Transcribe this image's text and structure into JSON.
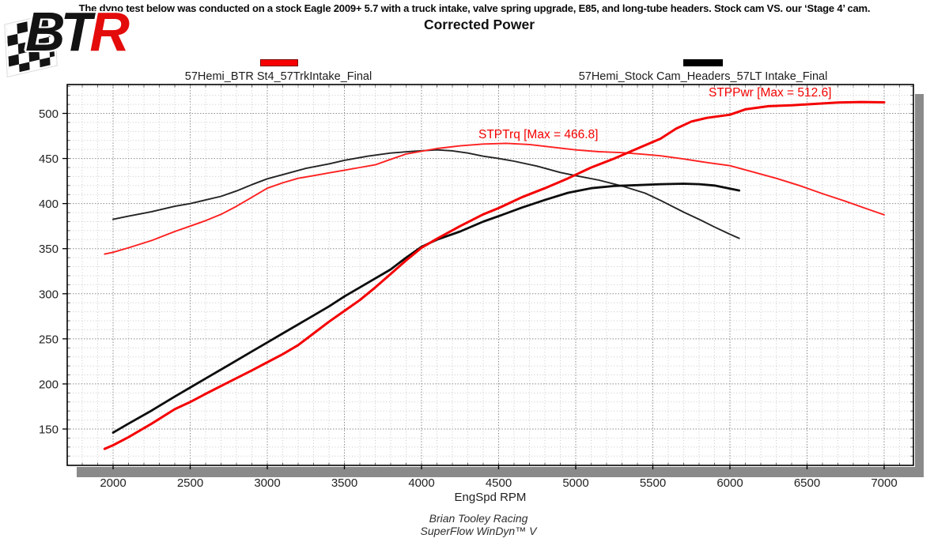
{
  "header": {
    "strip_text": "The dyno test below was conducted on a stock Eagle 2009+ 5.7 with a truck intake, valve spring upgrade, E85, and long-tube headers. Stock cam VS. our ‘Stage 4’ cam."
  },
  "logo": {
    "bt": "BT",
    "r": "R"
  },
  "footer": {
    "line1": "Brian Tooley Racing",
    "line2": "SuperFlow WinDyn™ V"
  },
  "chart_data": {
    "type": "line",
    "title": "Corrected Power",
    "xlabel": "EngSpd RPM",
    "ylabel": "",
    "grid": true,
    "legend_position": "top",
    "xlim": [
      1700,
      7190
    ],
    "ylim": [
      110,
      532
    ],
    "x_ticks": [
      2000,
      2500,
      3000,
      3500,
      4000,
      4500,
      5000,
      5500,
      6000,
      6500,
      7000
    ],
    "y_ticks": [
      150,
      200,
      250,
      300,
      350,
      400,
      450,
      500
    ],
    "x_minor_step": 100,
    "y_minor_step": 10,
    "colors": {
      "accent_red": "#f40000",
      "accent_black": "#111111",
      "shadow_gray": "#8a8a8a"
    },
    "legend": [
      {
        "label": "57Hemi_BTR St4_57TrkIntake_Final",
        "color": "#f70000"
      },
      {
        "label": "57Hemi_Stock Cam_Headers_57LT Intake_Final",
        "color": "#000000"
      }
    ],
    "annotations": [
      {
        "text": "STPTrq [Max = 466.8]",
        "color": "#f40000"
      },
      {
        "text": "STPPwr [Max = 512.6]",
        "color": "#f40000"
      }
    ],
    "series": [
      {
        "id": "stptrq_stock",
        "measure": "STPTrq",
        "run": "57Hemi_Stock Cam_Headers_57LT Intake_Final",
        "color": "#242424",
        "width": 1.9,
        "points": [
          [
            2000,
            382.5
          ],
          [
            2100,
            386
          ],
          [
            2250,
            391
          ],
          [
            2400,
            397
          ],
          [
            2500,
            400
          ],
          [
            2600,
            404
          ],
          [
            2700,
            408
          ],
          [
            2800,
            414
          ],
          [
            2900,
            421
          ],
          [
            3000,
            427.5
          ],
          [
            3100,
            432
          ],
          [
            3250,
            439
          ],
          [
            3400,
            444
          ],
          [
            3500,
            448
          ],
          [
            3650,
            452.5
          ],
          [
            3800,
            456
          ],
          [
            3950,
            458
          ],
          [
            4100,
            459.5
          ],
          [
            4200,
            458.5
          ],
          [
            4300,
            456
          ],
          [
            4400,
            452.5
          ],
          [
            4500,
            450
          ],
          [
            4600,
            447
          ],
          [
            4750,
            441.5
          ],
          [
            4900,
            434.5
          ],
          [
            5000,
            431
          ],
          [
            5150,
            426
          ],
          [
            5300,
            419.5
          ],
          [
            5450,
            411.5
          ],
          [
            5550,
            403.5
          ],
          [
            5700,
            390.5
          ],
          [
            5800,
            382.5
          ],
          [
            5900,
            374
          ],
          [
            6000,
            366
          ],
          [
            6060,
            361.5
          ]
        ]
      },
      {
        "id": "stptrq_btr",
        "measure": "STPTrq",
        "max": 466.8,
        "run": "57Hemi_BTR St4_57TrkIntake_Final",
        "color": "#ff2020",
        "width": 1.9,
        "points": [
          [
            1945,
            344
          ],
          [
            2000,
            346
          ],
          [
            2100,
            351
          ],
          [
            2250,
            359
          ],
          [
            2400,
            369
          ],
          [
            2500,
            375
          ],
          [
            2600,
            381
          ],
          [
            2700,
            388
          ],
          [
            2800,
            397
          ],
          [
            2900,
            407
          ],
          [
            3000,
            417
          ],
          [
            3100,
            423
          ],
          [
            3200,
            428
          ],
          [
            3300,
            431
          ],
          [
            3400,
            434
          ],
          [
            3500,
            437
          ],
          [
            3600,
            440
          ],
          [
            3700,
            443
          ],
          [
            3800,
            449
          ],
          [
            3900,
            455
          ],
          [
            4000,
            458
          ],
          [
            4100,
            461
          ],
          [
            4250,
            464
          ],
          [
            4400,
            466
          ],
          [
            4550,
            466.8
          ],
          [
            4700,
            465.5
          ],
          [
            4850,
            462.5
          ],
          [
            5000,
            459.5
          ],
          [
            5150,
            457.5
          ],
          [
            5300,
            456.5
          ],
          [
            5450,
            454.5
          ],
          [
            5550,
            453
          ],
          [
            5700,
            449.5
          ],
          [
            5850,
            445.5
          ],
          [
            6000,
            442
          ],
          [
            6150,
            435
          ],
          [
            6300,
            428
          ],
          [
            6450,
            420
          ],
          [
            6600,
            411
          ],
          [
            6750,
            402.5
          ],
          [
            6900,
            393.5
          ],
          [
            7000,
            387.5
          ]
        ]
      },
      {
        "id": "stppwr_stock",
        "measure": "STPPwr",
        "run": "57Hemi_Stock Cam_Headers_57LT Intake_Final",
        "color": "#0d0d0d",
        "width": 2.8,
        "points": [
          [
            2000,
            146
          ],
          [
            2100,
            156
          ],
          [
            2250,
            170.5
          ],
          [
            2400,
            186
          ],
          [
            2500,
            196
          ],
          [
            2600,
            206
          ],
          [
            2750,
            221
          ],
          [
            2900,
            236
          ],
          [
            3000,
            246
          ],
          [
            3100,
            256
          ],
          [
            3250,
            271
          ],
          [
            3400,
            286
          ],
          [
            3500,
            297
          ],
          [
            3650,
            312
          ],
          [
            3800,
            327
          ],
          [
            3900,
            340
          ],
          [
            4000,
            352
          ],
          [
            4100,
            360
          ],
          [
            4250,
            369
          ],
          [
            4400,
            380
          ],
          [
            4500,
            386
          ],
          [
            4650,
            395.5
          ],
          [
            4800,
            404
          ],
          [
            4950,
            412
          ],
          [
            5100,
            417
          ],
          [
            5250,
            419.5
          ],
          [
            5400,
            420.5
          ],
          [
            5550,
            421.5
          ],
          [
            5700,
            422
          ],
          [
            5800,
            421.5
          ],
          [
            5900,
            420
          ],
          [
            6000,
            416.5
          ],
          [
            6060,
            414.5
          ]
        ]
      },
      {
        "id": "stppwr_btr",
        "measure": "STPPwr",
        "max": 512.6,
        "run": "57Hemi_BTR St4_57TrkIntake_Final",
        "color": "#f40000",
        "width": 3,
        "points": [
          [
            1945,
            128
          ],
          [
            2000,
            132
          ],
          [
            2100,
            141
          ],
          [
            2250,
            156
          ],
          [
            2400,
            172
          ],
          [
            2500,
            180
          ],
          [
            2600,
            189
          ],
          [
            2750,
            202
          ],
          [
            2900,
            215
          ],
          [
            3000,
            224
          ],
          [
            3100,
            233
          ],
          [
            3200,
            243
          ],
          [
            3300,
            256
          ],
          [
            3400,
            269
          ],
          [
            3500,
            281
          ],
          [
            3600,
            293
          ],
          [
            3700,
            307
          ],
          [
            3800,
            322
          ],
          [
            3900,
            337
          ],
          [
            4000,
            351
          ],
          [
            4100,
            361
          ],
          [
            4250,
            375
          ],
          [
            4400,
            388
          ],
          [
            4500,
            395
          ],
          [
            4650,
            407
          ],
          [
            4800,
            417
          ],
          [
            4950,
            428
          ],
          [
            5100,
            440
          ],
          [
            5250,
            450
          ],
          [
            5400,
            461
          ],
          [
            5550,
            472
          ],
          [
            5650,
            483
          ],
          [
            5750,
            491
          ],
          [
            5850,
            495
          ],
          [
            6000,
            498.5
          ],
          [
            6100,
            504.5
          ],
          [
            6250,
            508
          ],
          [
            6400,
            509
          ],
          [
            6550,
            510.5
          ],
          [
            6700,
            512
          ],
          [
            6850,
            512.6
          ],
          [
            7000,
            512.3
          ]
        ]
      }
    ]
  }
}
